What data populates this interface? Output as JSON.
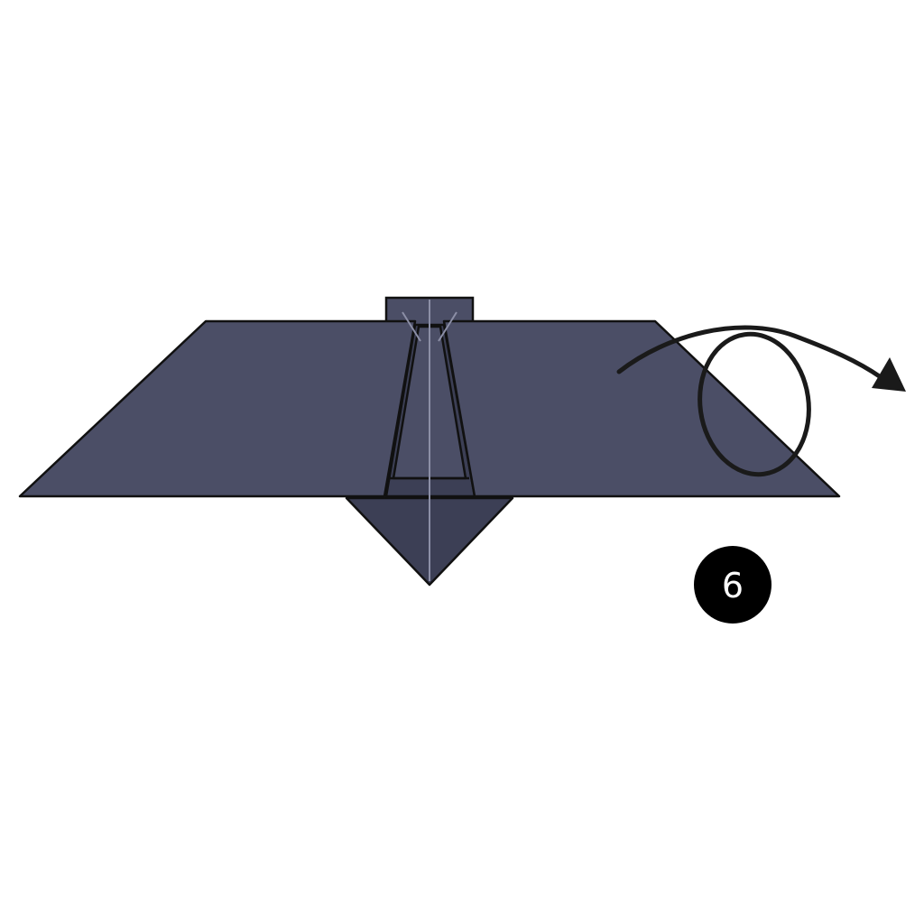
{
  "step": {
    "number": "6"
  },
  "colors": {
    "background": "#ffffff",
    "paper_main": "#4b4e66",
    "paper_shadow": "#3c3f55",
    "outline": "#111111",
    "crease_line": "#8c8fa6",
    "arrow": "#1a1a1a",
    "badge": "#000000",
    "badge_text": "#ffffff"
  },
  "icons": {
    "fold_arrow": "turn-over-arrow-icon"
  }
}
